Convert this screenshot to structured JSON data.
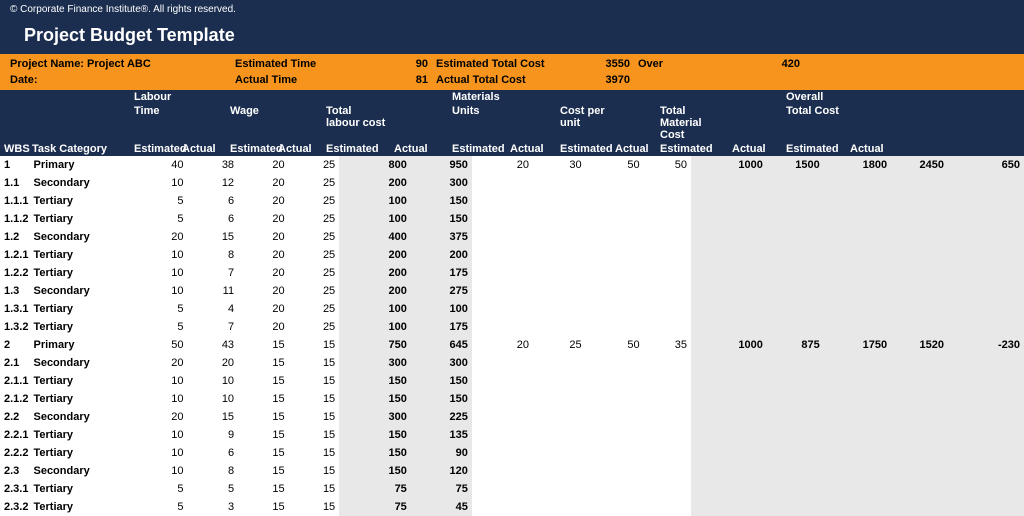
{
  "copyright": "© Corporate Finance Institute®. All rights reserved.",
  "title": "Project Budget Template",
  "summary": {
    "projectNameLabel": "Project Name:",
    "projectName": "Project ABC",
    "dateLabel": "Date:",
    "estTimeLabel": "Estimated Time",
    "estTime": "90",
    "actTimeLabel": "Actual Time",
    "actTime": "81",
    "estTotalCostLabel": "Estimated Total Cost",
    "estTotalCost": "3550",
    "actTotalCostLabel": "Actual Total Cost",
    "actTotalCost": "3970",
    "overLabel": "Over",
    "over": "420"
  },
  "headers": {
    "wbs": "WBS",
    "taskCategory": "Task Category",
    "labourGroup": "Labour",
    "time": "Time",
    "wage": "Wage",
    "totalLabourCost": "Total labour cost",
    "materialsGroup": "Materials",
    "units": "Units",
    "costPerUnit": "Cost per unit",
    "totalMaterialCost": "Total Material Cost",
    "overallGroup": "Overall",
    "totalCost": "Total Cost",
    "estimated": "Estimated",
    "actual": "Actual"
  },
  "rows": [
    {
      "wbs": "1",
      "task": "Primary",
      "bold": true,
      "tE": "40",
      "tA": "38",
      "wE": "20",
      "wA": "25",
      "lE": "800",
      "lA": "950",
      "uE": "20",
      "uA": "30",
      "cE": "50",
      "cA": "50",
      "mE": "1000",
      "mA": "1500",
      "oE": "1800",
      "oA": "2450",
      "var": "650"
    },
    {
      "wbs": "1.1",
      "task": "Secondary",
      "bold": true,
      "tE": "10",
      "tA": "12",
      "wE": "20",
      "wA": "25",
      "lE": "200",
      "lA": "300",
      "uE": "",
      "uA": "",
      "cE": "",
      "cA": "",
      "mE": "",
      "mA": "",
      "oE": "",
      "oA": "",
      "var": ""
    },
    {
      "wbs": "1.1.1",
      "task": "Tertiary",
      "bold": true,
      "tE": "5",
      "tA": "6",
      "wE": "20",
      "wA": "25",
      "lE": "100",
      "lA": "150",
      "uE": "",
      "uA": "",
      "cE": "",
      "cA": "",
      "mE": "",
      "mA": "",
      "oE": "",
      "oA": "",
      "var": ""
    },
    {
      "wbs": "1.1.2",
      "task": "Tertiary",
      "bold": true,
      "tE": "5",
      "tA": "6",
      "wE": "20",
      "wA": "25",
      "lE": "100",
      "lA": "150",
      "uE": "",
      "uA": "",
      "cE": "",
      "cA": "",
      "mE": "",
      "mA": "",
      "oE": "",
      "oA": "",
      "var": ""
    },
    {
      "wbs": "1.2",
      "task": "Secondary",
      "bold": true,
      "tE": "20",
      "tA": "15",
      "wE": "20",
      "wA": "25",
      "lE": "400",
      "lA": "375",
      "uE": "",
      "uA": "",
      "cE": "",
      "cA": "",
      "mE": "",
      "mA": "",
      "oE": "",
      "oA": "",
      "var": ""
    },
    {
      "wbs": "1.2.1",
      "task": "Tertiary",
      "bold": true,
      "tE": "10",
      "tA": "8",
      "wE": "20",
      "wA": "25",
      "lE": "200",
      "lA": "200",
      "uE": "",
      "uA": "",
      "cE": "",
      "cA": "",
      "mE": "",
      "mA": "",
      "oE": "",
      "oA": "",
      "var": ""
    },
    {
      "wbs": "1.2.2",
      "task": "Tertiary",
      "bold": true,
      "tE": "10",
      "tA": "7",
      "wE": "20",
      "wA": "25",
      "lE": "200",
      "lA": "175",
      "uE": "",
      "uA": "",
      "cE": "",
      "cA": "",
      "mE": "",
      "mA": "",
      "oE": "",
      "oA": "",
      "var": ""
    },
    {
      "wbs": "1.3",
      "task": "Secondary",
      "bold": true,
      "tE": "10",
      "tA": "11",
      "wE": "20",
      "wA": "25",
      "lE": "200",
      "lA": "275",
      "uE": "",
      "uA": "",
      "cE": "",
      "cA": "",
      "mE": "",
      "mA": "",
      "oE": "",
      "oA": "",
      "var": ""
    },
    {
      "wbs": "1.3.1",
      "task": "Tertiary",
      "bold": true,
      "tE": "5",
      "tA": "4",
      "wE": "20",
      "wA": "25",
      "lE": "100",
      "lA": "100",
      "uE": "",
      "uA": "",
      "cE": "",
      "cA": "",
      "mE": "",
      "mA": "",
      "oE": "",
      "oA": "",
      "var": ""
    },
    {
      "wbs": "1.3.2",
      "task": "Tertiary",
      "bold": true,
      "tE": "5",
      "tA": "7",
      "wE": "20",
      "wA": "25",
      "lE": "100",
      "lA": "175",
      "uE": "",
      "uA": "",
      "cE": "",
      "cA": "",
      "mE": "",
      "mA": "",
      "oE": "",
      "oA": "",
      "var": ""
    },
    {
      "wbs": "2",
      "task": "Primary",
      "bold": true,
      "tE": "50",
      "tA": "43",
      "wE": "15",
      "wA": "15",
      "lE": "750",
      "lA": "645",
      "uE": "20",
      "uA": "25",
      "cE": "50",
      "cA": "35",
      "mE": "1000",
      "mA": "875",
      "oE": "1750",
      "oA": "1520",
      "var": "-230"
    },
    {
      "wbs": "2.1",
      "task": "Secondary",
      "bold": true,
      "tE": "20",
      "tA": "20",
      "wE": "15",
      "wA": "15",
      "lE": "300",
      "lA": "300",
      "uE": "",
      "uA": "",
      "cE": "",
      "cA": "",
      "mE": "",
      "mA": "",
      "oE": "",
      "oA": "",
      "var": ""
    },
    {
      "wbs": "2.1.1",
      "task": "Tertiary",
      "bold": true,
      "tE": "10",
      "tA": "10",
      "wE": "15",
      "wA": "15",
      "lE": "150",
      "lA": "150",
      "uE": "",
      "uA": "",
      "cE": "",
      "cA": "",
      "mE": "",
      "mA": "",
      "oE": "",
      "oA": "",
      "var": ""
    },
    {
      "wbs": "2.1.2",
      "task": "Tertiary",
      "bold": true,
      "tE": "10",
      "tA": "10",
      "wE": "15",
      "wA": "15",
      "lE": "150",
      "lA": "150",
      "uE": "",
      "uA": "",
      "cE": "",
      "cA": "",
      "mE": "",
      "mA": "",
      "oE": "",
      "oA": "",
      "var": ""
    },
    {
      "wbs": "2.2",
      "task": "Secondary",
      "bold": true,
      "tE": "20",
      "tA": "15",
      "wE": "15",
      "wA": "15",
      "lE": "300",
      "lA": "225",
      "uE": "",
      "uA": "",
      "cE": "",
      "cA": "",
      "mE": "",
      "mA": "",
      "oE": "",
      "oA": "",
      "var": ""
    },
    {
      "wbs": "2.2.1",
      "task": "Tertiary",
      "bold": true,
      "tE": "10",
      "tA": "9",
      "wE": "15",
      "wA": "15",
      "lE": "150",
      "lA": "135",
      "uE": "",
      "uA": "",
      "cE": "",
      "cA": "",
      "mE": "",
      "mA": "",
      "oE": "",
      "oA": "",
      "var": ""
    },
    {
      "wbs": "2.2.2",
      "task": "Tertiary",
      "bold": true,
      "tE": "10",
      "tA": "6",
      "wE": "15",
      "wA": "15",
      "lE": "150",
      "lA": "90",
      "uE": "",
      "uA": "",
      "cE": "",
      "cA": "",
      "mE": "",
      "mA": "",
      "oE": "",
      "oA": "",
      "var": ""
    },
    {
      "wbs": "2.3",
      "task": "Secondary",
      "bold": true,
      "tE": "10",
      "tA": "8",
      "wE": "15",
      "wA": "15",
      "lE": "150",
      "lA": "120",
      "uE": "",
      "uA": "",
      "cE": "",
      "cA": "",
      "mE": "",
      "mA": "",
      "oE": "",
      "oA": "",
      "var": ""
    },
    {
      "wbs": "2.3.1",
      "task": "Tertiary",
      "bold": true,
      "tE": "5",
      "tA": "5",
      "wE": "15",
      "wA": "15",
      "lE": "75",
      "lA": "75",
      "uE": "",
      "uA": "",
      "cE": "",
      "cA": "",
      "mE": "",
      "mA": "",
      "oE": "",
      "oA": "",
      "var": ""
    },
    {
      "wbs": "2.3.2",
      "task": "Tertiary",
      "bold": true,
      "tE": "5",
      "tA": "3",
      "wE": "15",
      "wA": "15",
      "lE": "75",
      "lA": "45",
      "uE": "",
      "uA": "",
      "cE": "",
      "cA": "",
      "mE": "",
      "mA": "",
      "oE": "",
      "oA": "",
      "var": ""
    }
  ],
  "colors": {
    "headerBg": "#1b2e4f",
    "summaryBg": "#f7941d",
    "shadedBg": "#e8e8e8"
  }
}
